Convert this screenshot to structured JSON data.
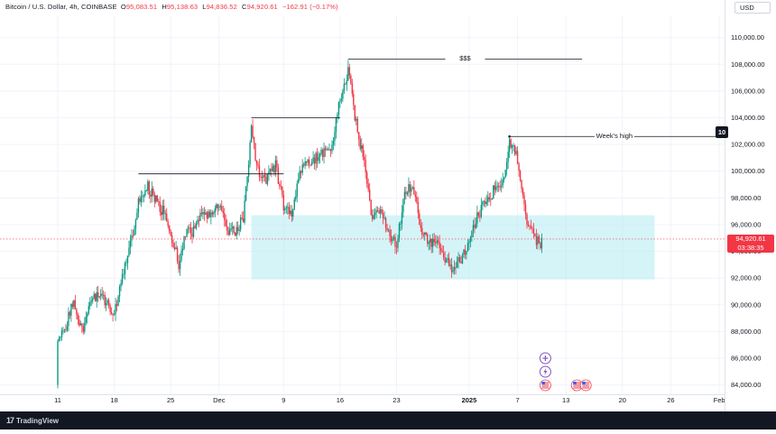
{
  "legend": {
    "symbol": "Bitcoin / U.S. Dollar, 4h, COINBASE",
    "open_label": "O",
    "open": "95,083.51",
    "high_label": "H",
    "high": "95,138.63",
    "low_label": "L",
    "low": "94,836.52",
    "close_label": "C",
    "close": "94,920.61",
    "change": "−162.91 (−0.17%)"
  },
  "currency": "USD",
  "last_price": {
    "value": "94,920.61",
    "countdown": "03:38:35"
  },
  "footer": {
    "brand": "TradingView",
    "logo_mark": "17"
  },
  "colors": {
    "up": "#089981",
    "down": "#f23645",
    "zone": "#b2ebf2",
    "grid": "#f0f3fa",
    "axis_text": "#131722"
  },
  "icons": [
    "plus-circle-icon",
    "lightning-icon",
    "us-flag-icon",
    "us-flag-icon",
    "us-flag-icon"
  ],
  "chart_data": {
    "type": "candlestick",
    "title": "Bitcoin / U.S. Dollar, 4h, COINBASE",
    "ylim": [
      83300,
      111600
    ],
    "y_ticks": [
      "84,000.00",
      "86,000.00",
      "88,000.00",
      "90,000.00",
      "92,000.00",
      "94,000.00",
      "96,000.00",
      "98,000.00",
      "100,000.00",
      "102,000.00",
      "104,000.00",
      "106,000.00",
      "108,000.00",
      "110,000.00"
    ],
    "y_tick_values": [
      84000,
      86000,
      88000,
      90000,
      92000,
      94000,
      96000,
      98000,
      100000,
      102000,
      104000,
      106000,
      108000,
      110000
    ],
    "x_ticks": [
      {
        "label": "11",
        "date": "2024-11-11"
      },
      {
        "label": "18",
        "date": "2024-11-18"
      },
      {
        "label": "25",
        "date": "2024-11-25"
      },
      {
        "label": "Dec",
        "date": "2024-12-01"
      },
      {
        "label": "9",
        "date": "2024-12-09"
      },
      {
        "label": "16",
        "date": "2024-12-16"
      },
      {
        "label": "23",
        "date": "2024-12-23"
      },
      {
        "label": "2025",
        "date": "2025-01-01"
      },
      {
        "label": "7",
        "date": "2025-01-07"
      },
      {
        "label": "13",
        "date": "2025-01-13"
      },
      {
        "label": "20",
        "date": "2025-01-20"
      },
      {
        "label": "26",
        "date": "2025-01-26"
      },
      {
        "label": "Feb",
        "date": "2025-02-01"
      }
    ],
    "path_points": [
      [
        "2024-11-11",
        84000
      ],
      [
        "2024-11-11",
        87000
      ],
      [
        "2024-11-12",
        88500
      ],
      [
        "2024-11-13",
        90500
      ],
      [
        "2024-11-14",
        88000
      ],
      [
        "2024-11-15",
        90000
      ],
      [
        "2024-11-16",
        91000
      ],
      [
        "2024-11-17",
        90000
      ],
      [
        "2024-11-18",
        89500
      ],
      [
        "2024-11-19",
        92000
      ],
      [
        "2024-11-20",
        94500
      ],
      [
        "2024-11-21",
        97500
      ],
      [
        "2024-11-22",
        99000
      ],
      [
        "2024-11-23",
        98000
      ],
      [
        "2024-11-24",
        97000
      ],
      [
        "2024-11-25",
        95500
      ],
      [
        "2024-11-26",
        93000
      ],
      [
        "2024-11-27",
        95500
      ],
      [
        "2024-11-28",
        95500
      ],
      [
        "2024-11-29",
        97000
      ],
      [
        "2024-11-30",
        96500
      ],
      [
        "2024-12-01",
        97500
      ],
      [
        "2024-12-02",
        95500
      ],
      [
        "2024-12-03",
        95500
      ],
      [
        "2024-12-04",
        96500
      ],
      [
        "2024-12-05",
        103000
      ],
      [
        "2024-12-06",
        99500
      ],
      [
        "2024-12-07",
        99500
      ],
      [
        "2024-12-08",
        100500
      ],
      [
        "2024-12-09",
        97500
      ],
      [
        "2024-12-10",
        96500
      ],
      [
        "2024-12-11",
        100000
      ],
      [
        "2024-12-12",
        100500
      ],
      [
        "2024-12-13",
        101000
      ],
      [
        "2024-12-14",
        101500
      ],
      [
        "2024-12-15",
        102000
      ],
      [
        "2024-12-16",
        105500
      ],
      [
        "2024-12-17",
        107500
      ],
      [
        "2024-12-18",
        103500
      ],
      [
        "2024-12-19",
        100500
      ],
      [
        "2024-12-20",
        96500
      ],
      [
        "2024-12-21",
        97000
      ],
      [
        "2024-12-22",
        95500
      ],
      [
        "2024-12-23",
        94500
      ],
      [
        "2024-12-24",
        98500
      ],
      [
        "2024-12-25",
        99000
      ],
      [
        "2024-12-26",
        95500
      ],
      [
        "2024-12-27",
        94500
      ],
      [
        "2024-12-28",
        94500
      ],
      [
        "2024-12-29",
        93500
      ],
      [
        "2024-12-30",
        92500
      ],
      [
        "2024-12-31",
        93500
      ],
      [
        "2025-01-01",
        94500
      ],
      [
        "2025-01-02",
        96800
      ],
      [
        "2025-01-03",
        97500
      ],
      [
        "2025-01-04",
        98500
      ],
      [
        "2025-01-05",
        98500
      ],
      [
        "2025-01-06",
        102000
      ],
      [
        "2025-01-07",
        101000
      ],
      [
        "2025-01-08",
        96500
      ],
      [
        "2025-01-09",
        95000
      ],
      [
        "2025-01-10",
        94500
      ],
      [
        "2025-01-10",
        94920
      ]
    ],
    "drawings": [
      {
        "type": "resistance-line",
        "from": "2024-11-21",
        "to": "2024-12-09",
        "price": 99800
      },
      {
        "type": "resistance-line",
        "from": "2024-12-05",
        "to": "2024-12-16",
        "price": 104000
      },
      {
        "type": "resistance-line",
        "from": "2024-12-17",
        "to": "2025-01-15",
        "price": 108400,
        "label": "$$$"
      },
      {
        "type": "resistance-line",
        "from": "2025-01-06",
        "to": "2025-02-01",
        "price": 102600,
        "label": "Week's high"
      },
      {
        "type": "zone",
        "from": "2024-12-05",
        "to": "2025-01-24",
        "price_from": 91900,
        "price_to": 96700
      }
    ]
  }
}
